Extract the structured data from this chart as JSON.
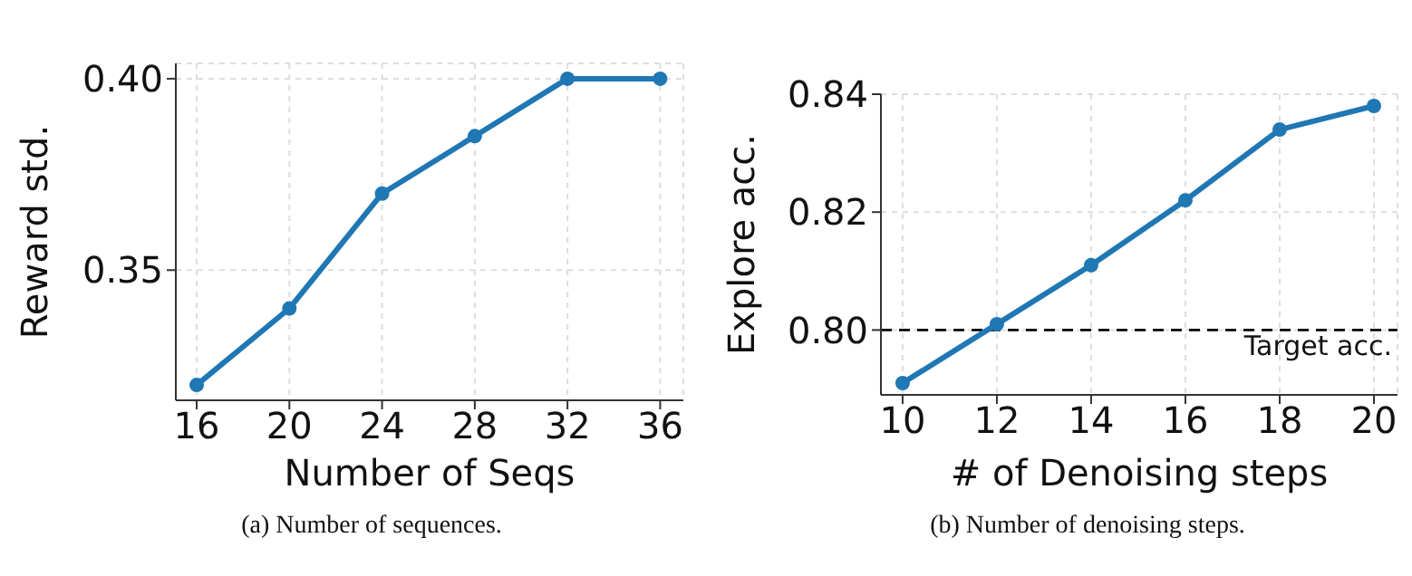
{
  "chart_data": [
    {
      "type": "line",
      "xlabel": "Number of Seqs",
      "ylabel": "Reward std.",
      "x": [
        16,
        20,
        24,
        28,
        32,
        36
      ],
      "series": [
        {
          "color": "#1f77b4",
          "values": [
            0.32,
            0.34,
            0.37,
            0.385,
            0.4,
            0.4
          ]
        }
      ],
      "xlim": [
        15.1,
        37.0
      ],
      "xticks": [
        16,
        20,
        24,
        28,
        32,
        36
      ],
      "ylim": [
        0.316,
        0.404
      ],
      "yticks": [
        {
          "value": 0.35,
          "label": "0.35"
        },
        {
          "value": 0.4,
          "label": "0.40"
        }
      ],
      "grid": true,
      "marker": "circle",
      "line_style": "solid",
      "annotations": [
        "(a) Number of sequences."
      ]
    },
    {
      "type": "line",
      "xlabel": "# of Denoising steps",
      "ylabel": "Explore acc.",
      "x": [
        10,
        12,
        14,
        16,
        18,
        20
      ],
      "series": [
        {
          "color": "#1f77b4",
          "values": [
            0.791,
            0.801,
            0.811,
            0.822,
            0.834,
            0.838
          ]
        }
      ],
      "xlim": [
        9.54,
        20.5
      ],
      "xticks": [
        10,
        12,
        14,
        16,
        18,
        20
      ],
      "ylim": [
        0.789,
        0.84
      ],
      "yticks": [
        {
          "value": 0.8,
          "label": "0.80"
        },
        {
          "value": 0.82,
          "label": "0.82"
        },
        {
          "value": 0.84,
          "label": "0.84"
        }
      ],
      "grid": true,
      "marker": "circle",
      "line_style": "solid",
      "ref_lines": [
        {
          "axis": "y",
          "value": 0.8,
          "label": "Target acc.",
          "color": "#000000",
          "line_style": "dashed"
        }
      ],
      "annotations": [
        "(b) Number of denoising steps."
      ]
    }
  ]
}
